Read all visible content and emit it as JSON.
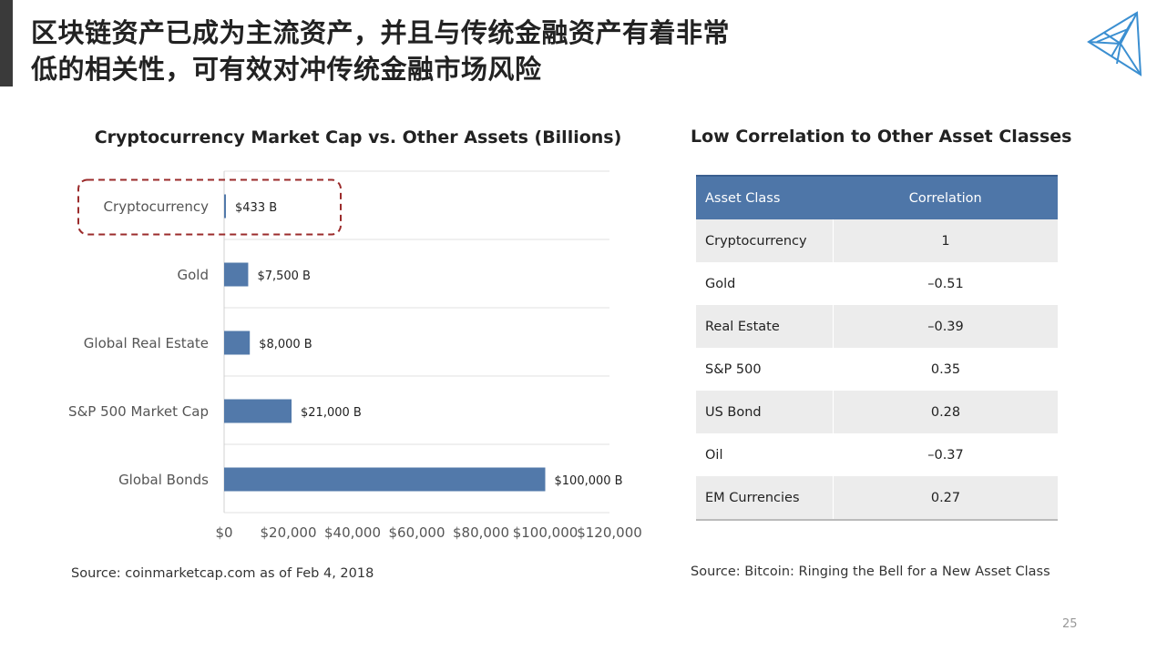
{
  "slide": {
    "title": "区块链资产已成为主流资产，并且与传统金融资产有着非常低的相关性，可有效对冲传统金融市场风险",
    "page_number": "25"
  },
  "colors": {
    "bar": "#5279aa",
    "table_header": "#4e76a8",
    "highlight_dash": "#9b2b2b",
    "left_bar": "#3a3a3a",
    "logo": "#3b8fd1"
  },
  "chart_data": {
    "type": "bar",
    "orientation": "horizontal",
    "title": "Cryptocurrency Market Cap vs. Other Assets (Billions)",
    "categories": [
      "Cryptocurrency",
      "Gold",
      "Global Real Estate",
      "S&P 500 Market Cap",
      "Global Bonds"
    ],
    "values": [
      433,
      7500,
      8000,
      21000,
      100000
    ],
    "value_labels": [
      "$433 B",
      "$7,500 B",
      "$8,000 B",
      "$21,000 B",
      "$100,000 B"
    ],
    "xlim": [
      0,
      120000
    ],
    "x_ticks": [
      0,
      20000,
      40000,
      60000,
      80000,
      100000,
      120000
    ],
    "x_tick_labels": [
      "$0",
      "$20,000",
      "$40,000",
      "$60,000",
      "$80,000",
      "$100,000",
      "$120,000"
    ],
    "grid": true,
    "highlighted_category": "Cryptocurrency"
  },
  "source_left": "Source: coinmarketcap.com as of Feb 4, 2018",
  "correlation_table": {
    "title": "Low Correlation to Other Asset Classes",
    "headers": [
      "Asset Class",
      "Correlation"
    ],
    "rows": [
      [
        "Cryptocurrency",
        "1"
      ],
      [
        "Gold",
        "–0.51"
      ],
      [
        "Real Estate",
        "–0.39"
      ],
      [
        "S&P 500",
        "0.35"
      ],
      [
        "US Bond",
        "0.28"
      ],
      [
        "Oil",
        "–0.37"
      ],
      [
        "EM Currencies",
        "0.27"
      ]
    ]
  },
  "source_right": "Source: Bitcoin: Ringing the Bell for a New Asset Class"
}
